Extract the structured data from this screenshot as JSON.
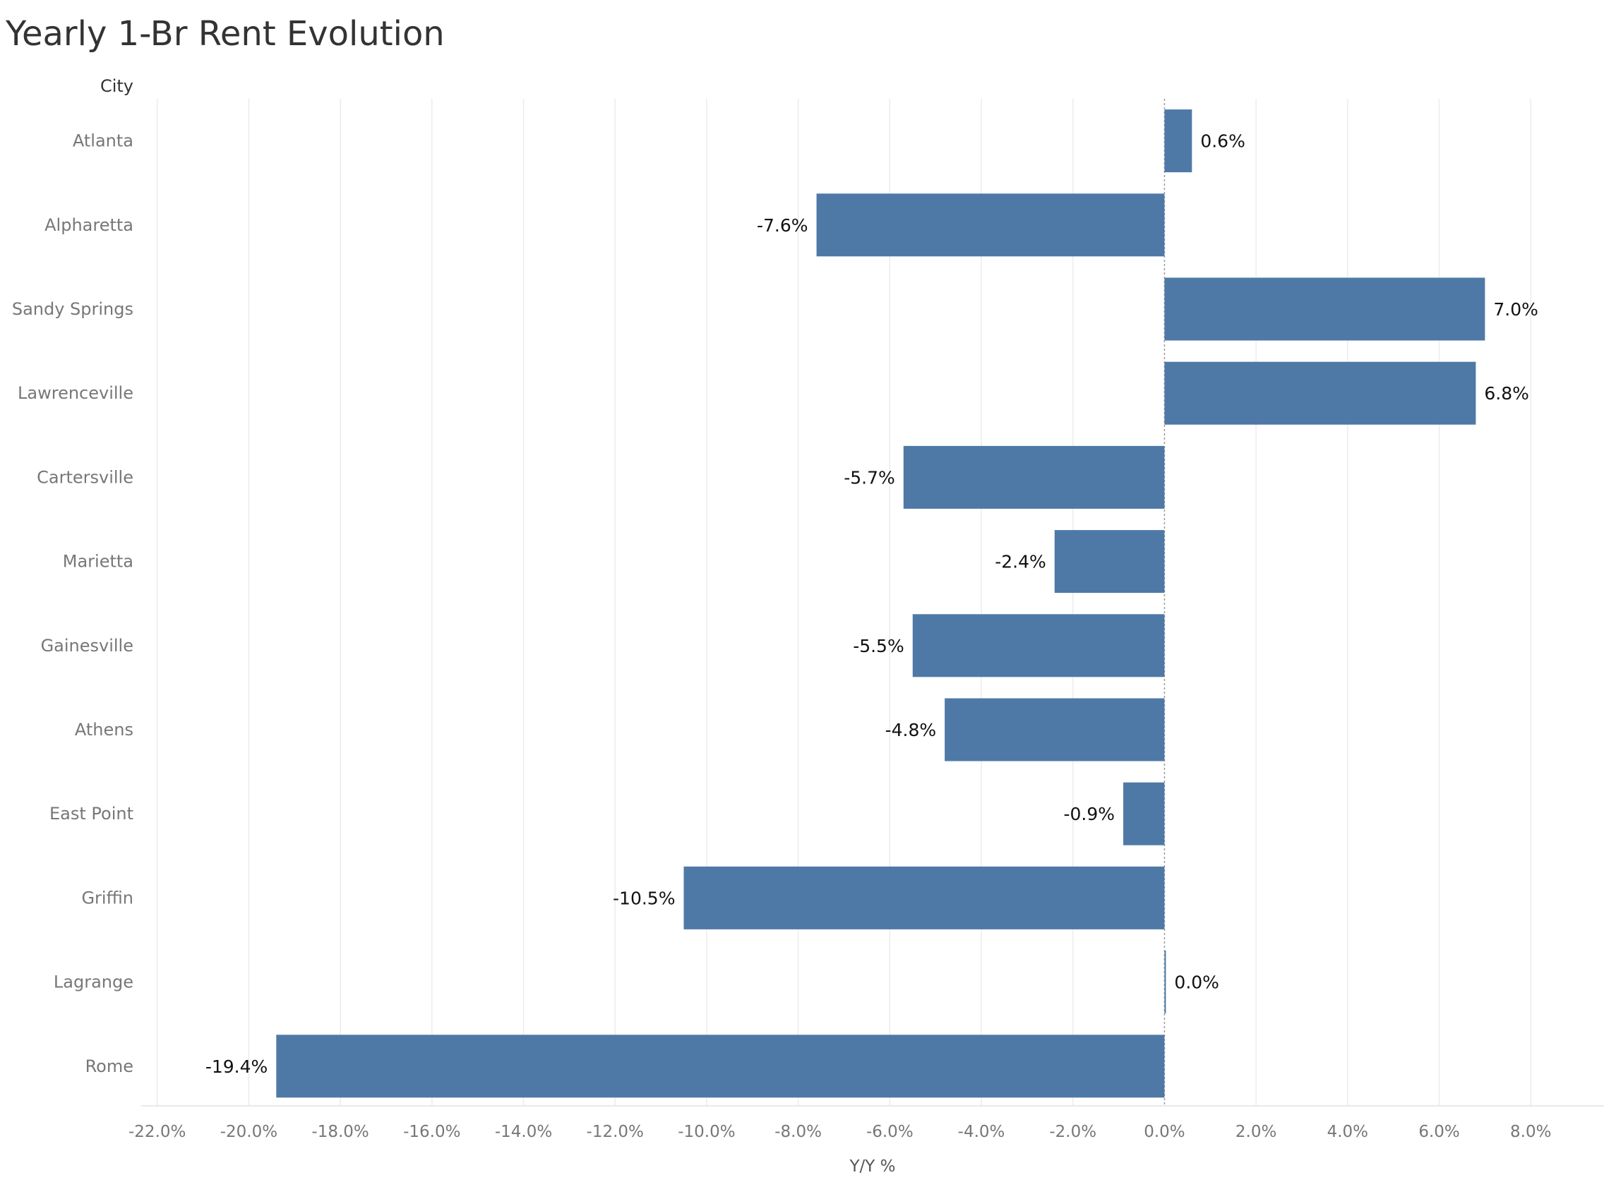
{
  "chart_data": {
    "type": "bar",
    "orientation": "horizontal",
    "title": "Yearly 1-Br Rent Evolution",
    "row_header": "City",
    "xlabel": "Y/Y %",
    "categories": [
      "Atlanta",
      "Alpharetta",
      "Sandy Springs",
      "Lawrenceville",
      "Cartersville",
      "Marietta",
      "Gainesville",
      "Athens",
      "East Point",
      "Griffin",
      "Lagrange",
      "Rome"
    ],
    "values": [
      0.6,
      -7.6,
      7.0,
      6.8,
      -5.7,
      -2.4,
      -5.5,
      -4.8,
      -0.9,
      -10.5,
      0.0,
      -19.4
    ],
    "value_labels": [
      "0.6%",
      "-7.6%",
      "7.0%",
      "6.8%",
      "-5.7%",
      "-2.4%",
      "-5.5%",
      "-4.8%",
      "-0.9%",
      "-10.5%",
      "0.0%",
      "-19.4%"
    ],
    "x_ticks": [
      -22,
      -20,
      -18,
      -16,
      -14,
      -12,
      -10,
      -8,
      -6,
      -4,
      -2,
      0,
      2,
      4,
      6,
      8
    ],
    "x_tick_labels": [
      "-22.0%",
      "-20.0%",
      "-18.0%",
      "-16.0%",
      "-14.0%",
      "-12.0%",
      "-10.0%",
      "-8.0%",
      "-6.0%",
      "-4.0%",
      "-2.0%",
      "0.0%",
      "2.0%",
      "4.0%",
      "6.0%",
      "8.0%"
    ],
    "xlim": [
      -22.35,
      9.6
    ],
    "grid": true,
    "bar_color": "#4e79a7"
  }
}
